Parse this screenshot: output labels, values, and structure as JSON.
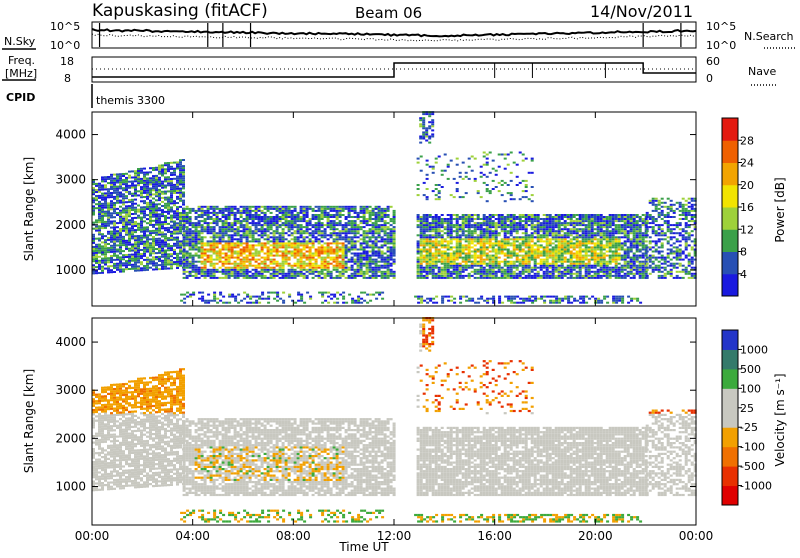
{
  "header": {
    "site": "Kapuskasing (fitACF)",
    "beam": "Beam 06",
    "date": "14/Nov/2011"
  },
  "top_panels": {
    "nsky_label": "N.Sky",
    "nsky_ticks": [
      "10^5",
      "10^0"
    ],
    "nsearch_label": "N.Search",
    "nsearch_ticks": [
      "10^5",
      "10^0"
    ],
    "freq_label": "Freq.",
    "freq_unit": "[MHz]",
    "freq_ticks": [
      "18",
      "8"
    ],
    "nave_label": "Nave",
    "nave_ticks": [
      "60",
      "0"
    ],
    "cpid_label": "CPID",
    "cpid_value": "themis 3300"
  },
  "chart_data": [
    {
      "type": "heatmap",
      "name": "power",
      "ylabel": "Slant Range [km]",
      "xlabel": "Time UT",
      "xlim_hours": [
        0,
        24
      ],
      "ylim": [
        200,
        4500
      ],
      "y_ticks": [
        "1000",
        "2000",
        "3000",
        "4000"
      ],
      "x_ticks": [
        "00:00",
        "04:00",
        "08:00",
        "12:00",
        "16:00",
        "20:00",
        "00:00"
      ],
      "colorbar": {
        "label": "Power [dB]",
        "ticks": [
          "4",
          "8",
          "12",
          "16",
          "20",
          "24",
          "28"
        ],
        "colors": [
          "#1a1adf",
          "#2850b4",
          "#3aa049",
          "#9ed13a",
          "#f2e400",
          "#f3a400",
          "#ef6000",
          "#e41a10"
        ]
      }
    },
    {
      "type": "heatmap",
      "name": "velocity",
      "ylabel": "Slant Range [km]",
      "xlabel": "Time UT",
      "xlim_hours": [
        0,
        24
      ],
      "ylim": [
        200,
        4500
      ],
      "y_ticks": [
        "1000",
        "2000",
        "3000",
        "4000"
      ],
      "x_ticks": [
        "00:00",
        "04:00",
        "08:00",
        "12:00",
        "16:00",
        "20:00",
        "00:00"
      ],
      "colorbar": {
        "label": "Velocity [m s⁻¹]",
        "ticks": [
          "1000",
          "500",
          "100",
          "25",
          "-25",
          "-100",
          "-500",
          "-1000"
        ],
        "colors": [
          "#2335c9",
          "#347a6b",
          "#3caa3c",
          "#c8c8c0",
          "#c8c8c0",
          "#f2a000",
          "#f07000",
          "#e83000",
          "#e00000"
        ]
      }
    }
  ],
  "colors": {
    "ground_scatter": "#c8c8c0",
    "axis": "#000000"
  }
}
